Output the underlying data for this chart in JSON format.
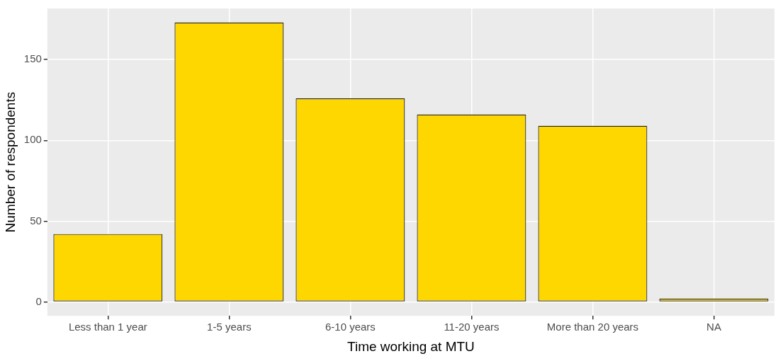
{
  "chart_data": {
    "type": "bar",
    "xlabel": "Time working at MTU",
    "ylabel": "Number of respondents",
    "categories": [
      "Less than 1 year",
      "1-5 years",
      "6-10 years",
      "11-20 years",
      "More than 20 years",
      "NA"
    ],
    "values": [
      42,
      173,
      126,
      116,
      109,
      2
    ],
    "color": "#ffd700",
    "ylim": [
      -8.65,
      181.65
    ],
    "yticks": [
      0,
      50,
      100,
      150
    ],
    "grid": true
  }
}
